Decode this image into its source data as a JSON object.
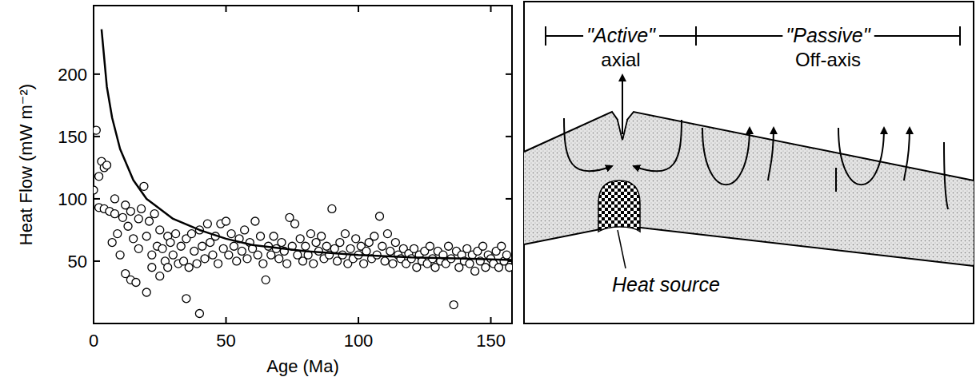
{
  "chart_data": {
    "type": "scatter",
    "x_label": "Age (Ma)",
    "y_label": "Heat Flow (mW m⁻²)",
    "xlim": [
      0,
      158
    ],
    "ylim": [
      0,
      255
    ],
    "xticks": [
      0,
      50,
      100,
      150
    ],
    "yticks": [
      50,
      100,
      150,
      200
    ],
    "grid": false,
    "series": [
      {
        "type": "scatter",
        "marker": "circle",
        "color": "#000000",
        "x": [
          0,
          1,
          2,
          2,
          3,
          4,
          5,
          4,
          6,
          7,
          8,
          8,
          9,
          10,
          11,
          12,
          12,
          13,
          14,
          14,
          15,
          16,
          17,
          17,
          18,
          19,
          20,
          20,
          21,
          22,
          22,
          23,
          24,
          25,
          25,
          26,
          27,
          28,
          28,
          29,
          30,
          31,
          32,
          33,
          34,
          35,
          35,
          36,
          37,
          38,
          39,
          40,
          40,
          41,
          42,
          43,
          44,
          45,
          46,
          47,
          48,
          49,
          50,
          51,
          52,
          53,
          54,
          55,
          56,
          57,
          58,
          59,
          60,
          61,
          62,
          63,
          64,
          65,
          66,
          67,
          68,
          69,
          70,
          71,
          72,
          73,
          74,
          75,
          76,
          77,
          78,
          79,
          80,
          81,
          82,
          83,
          84,
          85,
          86,
          87,
          88,
          89,
          90,
          91,
          92,
          93,
          94,
          95,
          96,
          97,
          98,
          99,
          100,
          101,
          102,
          103,
          104,
          105,
          106,
          107,
          108,
          109,
          110,
          111,
          112,
          113,
          114,
          115,
          116,
          117,
          118,
          119,
          120,
          121,
          122,
          123,
          124,
          125,
          126,
          127,
          128,
          129,
          130,
          131,
          132,
          133,
          134,
          135,
          136,
          137,
          138,
          139,
          140,
          141,
          142,
          143,
          144,
          145,
          146,
          147,
          148,
          149,
          150,
          151,
          152,
          153,
          154,
          155,
          156,
          157
        ],
        "values": [
          107,
          155,
          118,
          93,
          130,
          125,
          127,
          92,
          90,
          65,
          100,
          88,
          72,
          55,
          85,
          95,
          40,
          78,
          90,
          35,
          68,
          33,
          84,
          60,
          92,
          110,
          25,
          70,
          82,
          55,
          45,
          88,
          62,
          75,
          38,
          60,
          50,
          70,
          45,
          65,
          55,
          72,
          48,
          62,
          50,
          68,
          20,
          45,
          72,
          58,
          48,
          8,
          75,
          62,
          52,
          80,
          65,
          55,
          70,
          48,
          80,
          60,
          82,
          55,
          72,
          62,
          50,
          68,
          58,
          75,
          52,
          65,
          60,
          82,
          55,
          70,
          48,
          35,
          62,
          55,
          70,
          60,
          52,
          65,
          58,
          48,
          85,
          62,
          80,
          55,
          68,
          50,
          62,
          55,
          72,
          48,
          65,
          58,
          70,
          52,
          62,
          55,
          92,
          60,
          50,
          65,
          55,
          72,
          48,
          60,
          52,
          68,
          55,
          62,
          48,
          58,
          65,
          52,
          70,
          55,
          86,
          62,
          50,
          72,
          58,
          48,
          65,
          55,
          52,
          60,
          48,
          56,
          52,
          60,
          45,
          55,
          50,
          58,
          48,
          62,
          52,
          45,
          58,
          50,
          55,
          48,
          62,
          52,
          15,
          58,
          45,
          55,
          50,
          60,
          48,
          55,
          42,
          58,
          50,
          62,
          45,
          55,
          52,
          48,
          58,
          45,
          62,
          50,
          55,
          45
        ]
      },
      {
        "type": "line",
        "line_style": "solid",
        "color": "#000000",
        "x": [
          3,
          5,
          7,
          10,
          15,
          20,
          30,
          40,
          50,
          60,
          80,
          100,
          120,
          140,
          158
        ],
        "values": [
          236,
          190,
          165,
          140,
          115,
          100,
          84,
          75,
          68,
          63,
          58,
          55,
          53,
          52,
          51
        ]
      }
    ]
  },
  "diagram": {
    "zones": [
      {
        "name": "\"Active\"",
        "label": "axial"
      },
      {
        "name": "\"Passive\"",
        "label": "Off-axis"
      }
    ],
    "heat_source": "Heat source"
  }
}
